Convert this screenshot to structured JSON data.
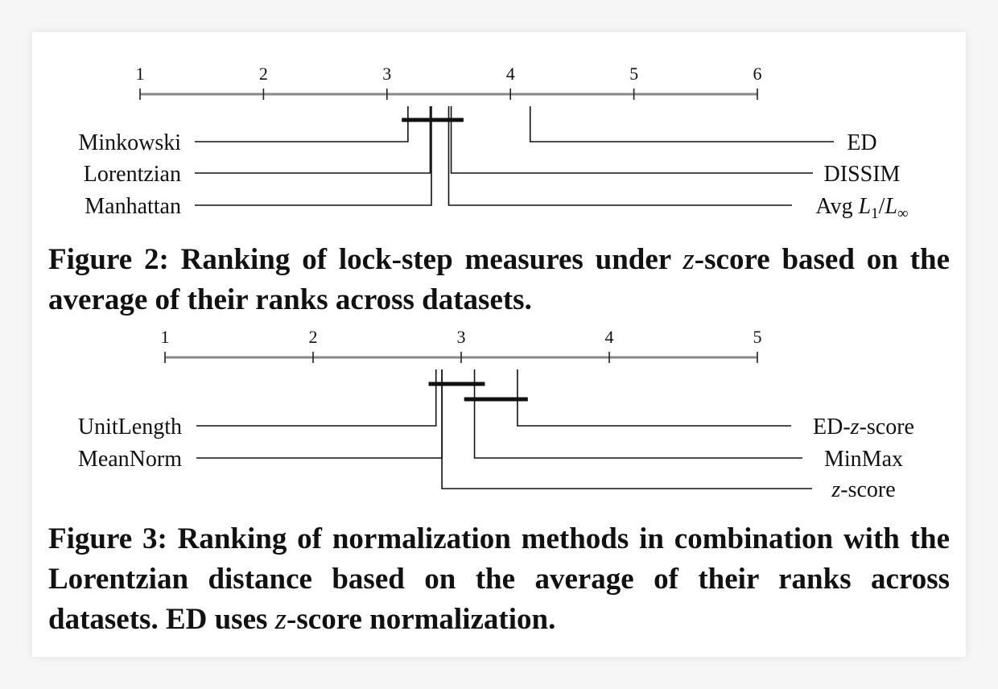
{
  "figures": [
    {
      "chart_data": {
        "type": "critical-difference",
        "axis": {
          "min": 1,
          "max": 6,
          "ticks": [
            "1",
            "2",
            "3",
            "4",
            "5",
            "6"
          ]
        },
        "items": [
          {
            "name": "Minkowski",
            "rank": 3.17,
            "side": "left"
          },
          {
            "name": "Lorentzian",
            "rank": 3.35,
            "side": "left"
          },
          {
            "name": "Manhattan",
            "rank": 3.36,
            "side": "left"
          },
          {
            "name": "ED",
            "rank": 4.16,
            "side": "right"
          },
          {
            "name": "DISSIM",
            "rank": 3.52,
            "side": "right"
          },
          {
            "name": "Avg L1/L∞",
            "rank": 3.5,
            "side": "right"
          }
        ],
        "cliques": [
          [
            3.12,
            3.62
          ]
        ]
      },
      "caption": {
        "number": "Figure 2:",
        "before": "Ranking of lock-step measures under ",
        "italic": "z",
        "after": "-score based on the average of their ranks across datasets."
      }
    },
    {
      "chart_data": {
        "type": "critical-difference",
        "axis": {
          "min": 1,
          "max": 5,
          "ticks": [
            "1",
            "2",
            "3",
            "4",
            "5"
          ]
        },
        "items": [
          {
            "name": "UnitLength",
            "rank": 2.83,
            "side": "left"
          },
          {
            "name": "MeanNorm",
            "rank": 2.87,
            "side": "left"
          },
          {
            "name": "ED-z-score",
            "rank": 3.38,
            "side": "right"
          },
          {
            "name": "MinMax",
            "rank": 3.09,
            "side": "right"
          },
          {
            "name": "z-score",
            "rank": 2.87,
            "side": "right"
          }
        ],
        "cliques": [
          [
            2.78,
            3.16
          ],
          [
            3.02,
            3.45
          ]
        ]
      },
      "caption": {
        "number": "Figure 3:",
        "before": "Ranking of normalization methods in combination with the Lorentzian distance based on the average of their ranks across datasets. ED uses ",
        "italic": "z",
        "after": "-score normalization."
      }
    }
  ]
}
